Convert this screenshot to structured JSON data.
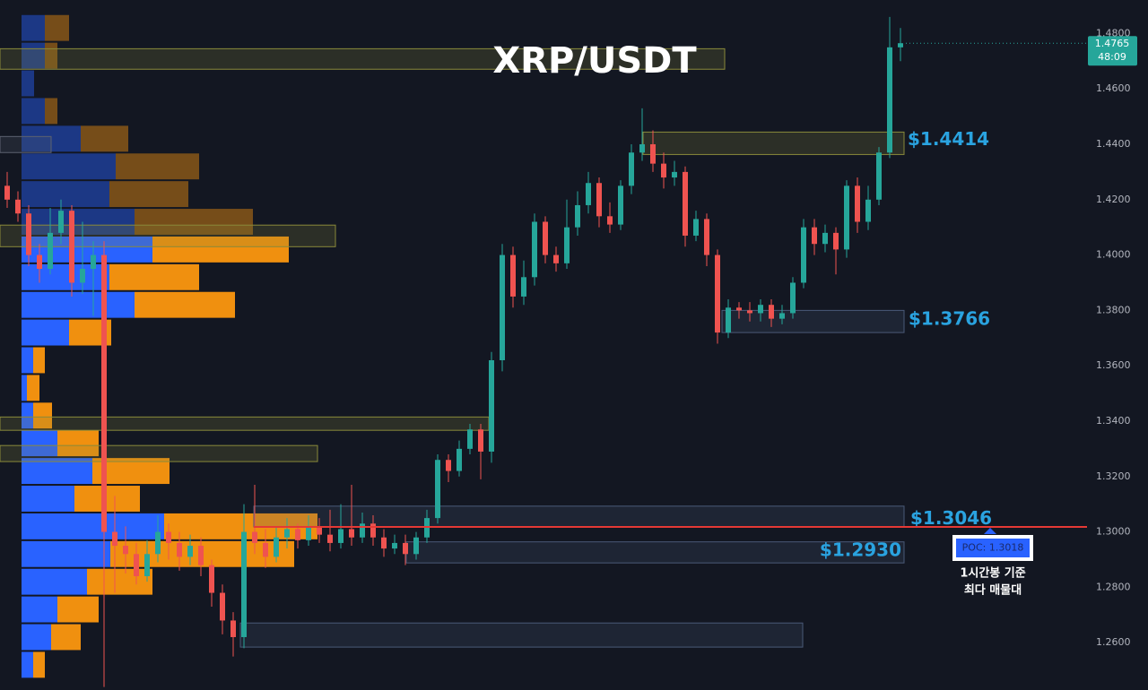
{
  "chart_data": {
    "type": "candlestick",
    "title": "XRP/USDT",
    "ylim": [
      1.2429,
      1.4921
    ],
    "yticks": [
      {
        "value": 1.26,
        "label": "1.2600"
      },
      {
        "value": 1.28,
        "label": "1.2800"
      },
      {
        "value": 1.3,
        "label": "1.3000"
      },
      {
        "value": 1.32,
        "label": "1.3200"
      },
      {
        "value": 1.34,
        "label": "1.3400"
      },
      {
        "value": 1.36,
        "label": "1.3600"
      },
      {
        "value": 1.38,
        "label": "1.3800"
      },
      {
        "value": 1.4,
        "label": "1.4000"
      },
      {
        "value": 1.42,
        "label": "1.4200"
      },
      {
        "value": 1.44,
        "label": "1.4400"
      },
      {
        "value": 1.46,
        "label": "1.4600"
      },
      {
        "value": 1.48,
        "label": "1.4800"
      }
    ],
    "grid": false,
    "up_color": "#26a69a",
    "down_color": "#ef5350",
    "open": [
      1.425,
      1.42,
      1.415,
      1.4,
      1.395,
      1.408,
      1.416,
      1.39,
      1.395,
      1.4,
      1.3,
      1.295,
      1.292,
      1.284,
      1.292,
      1.3,
      1.296,
      1.291,
      1.295,
      1.288,
      1.278,
      1.268,
      1.262,
      1.3,
      1.296,
      1.291,
      1.298,
      1.301,
      1.297,
      1.302,
      1.299,
      1.296,
      1.301,
      1.298,
      1.303,
      1.298,
      1.294,
      1.296,
      1.292,
      1.298,
      1.305,
      1.326,
      1.322,
      1.33,
      1.337,
      1.329,
      1.362,
      1.4,
      1.385,
      1.392,
      1.412,
      1.4,
      1.397,
      1.41,
      1.418,
      1.426,
      1.414,
      1.411,
      1.425,
      1.437,
      1.44,
      1.433,
      1.428,
      1.43,
      1.407,
      1.413,
      1.4,
      1.372,
      1.381,
      1.38,
      1.379,
      1.382,
      1.377,
      1.379,
      1.39,
      1.41,
      1.404,
      1.408,
      1.402,
      1.425,
      1.412,
      1.42,
      1.437,
      1.475
    ],
    "high": [
      1.43,
      1.423,
      1.418,
      1.404,
      1.417,
      1.42,
      1.418,
      1.412,
      1.405,
      1.405,
      1.313,
      1.302,
      1.296,
      1.297,
      1.306,
      1.303,
      1.3,
      1.299,
      1.298,
      1.29,
      1.281,
      1.271,
      1.31,
      1.317,
      1.301,
      1.302,
      1.305,
      1.303,
      1.306,
      1.305,
      1.308,
      1.31,
      1.317,
      1.307,
      1.306,
      1.301,
      1.299,
      1.299,
      1.3,
      1.308,
      1.328,
      1.328,
      1.333,
      1.339,
      1.339,
      1.365,
      1.404,
      1.403,
      1.398,
      1.415,
      1.414,
      1.403,
      1.42,
      1.423,
      1.43,
      1.428,
      1.419,
      1.427,
      1.44,
      1.453,
      1.445,
      1.437,
      1.434,
      1.432,
      1.416,
      1.415,
      1.402,
      1.384,
      1.383,
      1.383,
      1.384,
      1.384,
      1.382,
      1.392,
      1.413,
      1.413,
      1.411,
      1.41,
      1.427,
      1.428,
      1.425,
      1.439,
      1.486,
      1.482
    ],
    "low": [
      1.417,
      1.412,
      1.396,
      1.39,
      1.393,
      1.404,
      1.385,
      1.386,
      1.378,
      1.244,
      1.278,
      1.285,
      1.281,
      1.282,
      1.289,
      1.29,
      1.286,
      1.288,
      1.284,
      1.273,
      1.263,
      1.255,
      1.258,
      1.292,
      1.287,
      1.289,
      1.294,
      1.294,
      1.295,
      1.296,
      1.293,
      1.294,
      1.295,
      1.296,
      1.295,
      1.291,
      1.292,
      1.288,
      1.29,
      1.296,
      1.303,
      1.318,
      1.32,
      1.328,
      1.319,
      1.325,
      1.358,
      1.381,
      1.382,
      1.389,
      1.397,
      1.394,
      1.395,
      1.407,
      1.415,
      1.41,
      1.408,
      1.409,
      1.422,
      1.434,
      1.43,
      1.424,
      1.425,
      1.403,
      1.405,
      1.396,
      1.368,
      1.37,
      1.377,
      1.376,
      1.376,
      1.374,
      1.375,
      1.377,
      1.388,
      1.4,
      1.401,
      1.393,
      1.399,
      1.408,
      1.409,
      1.418,
      1.435,
      1.47
    ],
    "close": [
      1.42,
      1.415,
      1.4,
      1.395,
      1.408,
      1.416,
      1.39,
      1.395,
      1.4,
      1.3,
      1.295,
      1.292,
      1.284,
      1.292,
      1.3,
      1.296,
      1.291,
      1.295,
      1.288,
      1.278,
      1.268,
      1.262,
      1.3,
      1.296,
      1.291,
      1.298,
      1.301,
      1.297,
      1.302,
      1.299,
      1.296,
      1.301,
      1.298,
      1.303,
      1.298,
      1.294,
      1.296,
      1.292,
      1.298,
      1.305,
      1.326,
      1.322,
      1.33,
      1.337,
      1.329,
      1.362,
      1.4,
      1.385,
      1.392,
      1.412,
      1.4,
      1.397,
      1.41,
      1.418,
      1.426,
      1.414,
      1.411,
      1.425,
      1.437,
      1.44,
      1.433,
      1.428,
      1.43,
      1.407,
      1.413,
      1.4,
      1.372,
      1.381,
      1.38,
      1.379,
      1.382,
      1.377,
      1.379,
      1.39,
      1.41,
      1.404,
      1.408,
      1.402,
      1.425,
      1.412,
      1.42,
      1.437,
      1.475,
      1.4765
    ],
    "profile": {
      "bins": [
        1.487,
        1.477,
        1.467,
        1.457,
        1.447,
        1.437,
        1.427,
        1.417,
        1.407,
        1.397,
        1.387,
        1.377,
        1.367,
        1.357,
        1.347,
        1.337,
        1.327,
        1.317,
        1.307,
        1.297,
        1.287,
        1.277,
        1.267,
        1.257,
        1.247
      ],
      "buy": [
        26,
        26,
        14,
        26,
        66,
        105,
        98,
        126,
        146,
        98,
        126,
        53,
        13,
        6,
        13,
        40,
        79,
        59,
        159,
        99,
        73,
        40,
        33,
        13
      ],
      "sell": [
        27,
        14,
        0,
        14,
        53,
        93,
        88,
        132,
        152,
        100,
        112,
        47,
        13,
        14,
        21,
        46,
        86,
        73,
        171,
        205,
        73,
        46,
        33,
        13
      ],
      "buy_color": "#2962ff",
      "sell_color": "#f0900f"
    },
    "zones": [
      {
        "top": 1.4745,
        "bottom": 1.4671,
        "color": "#8a8a3a"
      },
      {
        "top": 1.4444,
        "bottom": 1.4363,
        "color": "#8a8a3a",
        "label": {
          "value": 1.4414,
          "label": "$1.4414"
        }
      },
      {
        "top": 1.4428,
        "bottom": 1.437,
        "color": "#5d6270"
      },
      {
        "top": 1.4108,
        "bottom": 1.403,
        "color": "#8a8a3a"
      },
      {
        "top": 1.38,
        "bottom": 1.372,
        "color": "#4a5a78",
        "label": {
          "value": 1.3766,
          "label": "$1.3766"
        }
      },
      {
        "top": 1.3415,
        "bottom": 1.3367,
        "color": "#8a8a3a"
      },
      {
        "top": 1.3312,
        "bottom": 1.3254,
        "color": "#8a8a3a"
      },
      {
        "top": 1.3093,
        "bottom": 1.3018,
        "color": "#4a5a78",
        "label": {
          "value": 1.3046,
          "label": "$1.3046"
        }
      },
      {
        "top": 1.2964,
        "bottom": 1.2888,
        "color": "#4a5a78",
        "label": {
          "value": 1.293,
          "label": "$1.2930"
        }
      },
      {
        "top": 1.2671,
        "bottom": 1.2584,
        "color": "#4a5a78"
      }
    ],
    "poc": {
      "value": 1.3018,
      "label": "POC: 1.3018",
      "color": "#e53935"
    },
    "poc_note": [
      "1시간봉 기준",
      "최다 매물대"
    ],
    "last_price": {
      "value": 1.4765,
      "label": "1.4765"
    },
    "countdown": "48:09"
  }
}
